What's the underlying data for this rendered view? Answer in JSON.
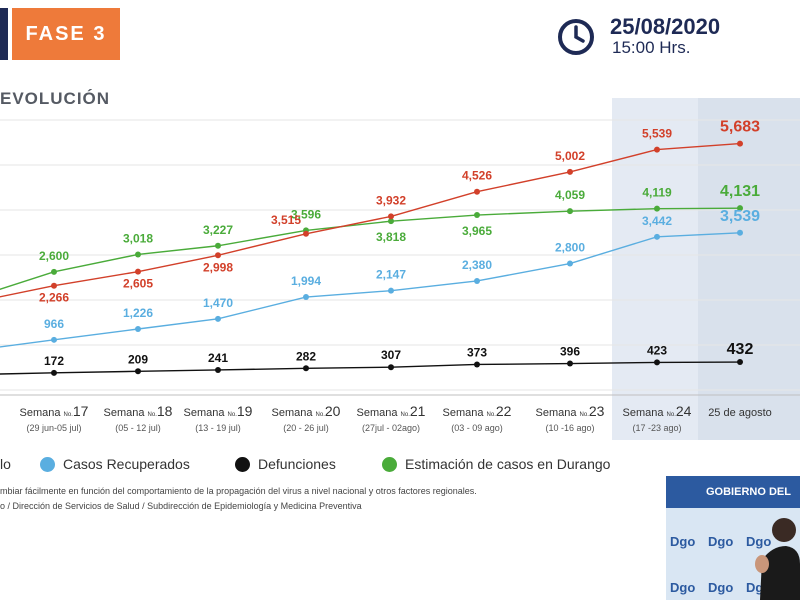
{
  "header": {
    "phase_label": "FASE 3",
    "date": "25/08/2020",
    "time": "15:00 Hrs."
  },
  "section_title": "EVOLUCIÓN",
  "chart_data": {
    "type": "line",
    "x": [
      {
        "week": "Semana",
        "num": "No.",
        "big": "17",
        "range": "(29 jun-05 jul)"
      },
      {
        "week": "Semana",
        "num": "No.",
        "big": "18",
        "range": "(05 - 12 jul)"
      },
      {
        "week": "Semana",
        "num": "No.",
        "big": "19",
        "range": "(13 - 19 jul)"
      },
      {
        "week": "Semana",
        "num": "No.",
        "big": "20",
        "range": "(20 - 26 jul)"
      },
      {
        "week": "Semana",
        "num": "No.",
        "big": "21",
        "range": "(27jul - 02ago)"
      },
      {
        "week": "Semana",
        "num": "No.",
        "big": "22",
        "range": "(03 - 09 ago)"
      },
      {
        "week": "Semana",
        "num": "No.",
        "big": "23",
        "range": "(10 -16 ago)"
      },
      {
        "week": "Semana",
        "num": "No.",
        "big": "24",
        "range": "(17 -23 ago)"
      },
      {
        "week": "25 de agosto",
        "num": "",
        "big": "",
        "range": ""
      }
    ],
    "series": [
      {
        "name": "Casos Recuperados",
        "color": "#5aaee0",
        "values": [
          966,
          1226,
          1470,
          1994,
          2147,
          2380,
          2800,
          3442,
          3539
        ],
        "labels": [
          "966",
          "1,226",
          "1,470",
          "1,994",
          "2,147",
          "2,380",
          "2,800",
          "3,442",
          "3,539"
        ]
      },
      {
        "name": "Defunciones",
        "color": "#111111",
        "values": [
          172,
          209,
          241,
          282,
          307,
          373,
          396,
          423,
          432
        ],
        "labels": [
          "172",
          "209",
          "241",
          "282",
          "307",
          "373",
          "396",
          "423",
          "432"
        ]
      },
      {
        "name": "Estimación de casos en Durango",
        "color": "#4aab3a",
        "values": [
          2600,
          3018,
          3227,
          3596,
          3818,
          3965,
          4059,
          4119,
          4131
        ],
        "labels": [
          "2,600",
          "3,018",
          "3,227",
          "3,596",
          "3,818",
          "3,965",
          "4,059",
          "4,119",
          "4,131"
        ]
      },
      {
        "name": "",
        "color": "#d2402a",
        "values": [
          2266,
          2605,
          2998,
          3515,
          3932,
          4526,
          5002,
          5539,
          5683
        ],
        "labels": [
          "2,266",
          "2,605",
          "2,998",
          "3,515",
          "3,932",
          "4,526",
          "5,002",
          "5,539",
          "5,683"
        ]
      }
    ],
    "legend_partial": "lo",
    "grid": true,
    "highlighted_columns": [
      "Semana No. 24",
      "25 de agosto"
    ]
  },
  "notes": [
    "mbiar fácilmente en función del comportamiento de la propagación del virus a nivel nacional y otros factores regionales.",
    "o / Dirección de Servicios de Salud / Subdirección de Epidemiología y Medicina Preventiva"
  ],
  "video": {
    "banner": "GOBIERNO DEL",
    "logo_text": "Dgo"
  },
  "colors": {
    "phase": "#ee7a3a",
    "navy": "#1e2a55",
    "recovered": "#5aaee0",
    "deaths": "#111111",
    "estimate": "#4aab3a",
    "confirmed": "#d2402a",
    "highlight": "#e4eaf3"
  }
}
